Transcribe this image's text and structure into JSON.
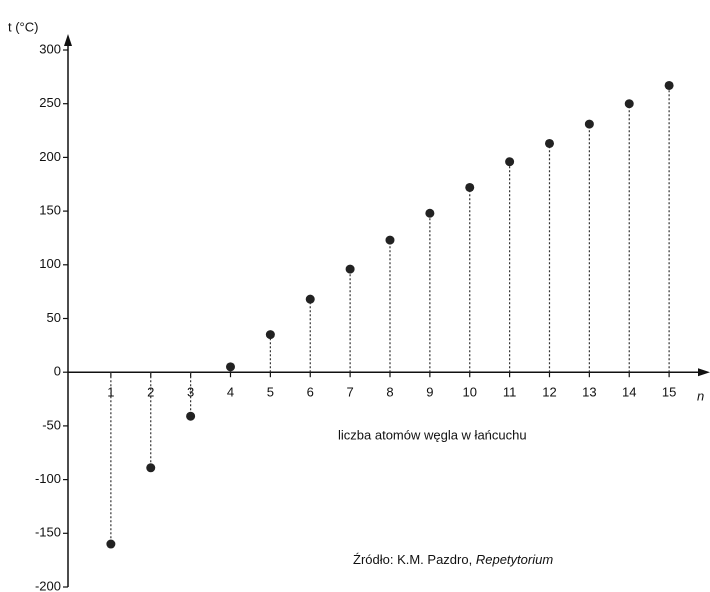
{
  "chart_data": {
    "type": "stem",
    "y_label": "t (°C)",
    "x_label": "n",
    "x_title": "liczba atomów węgla w łańcuchu",
    "source": "Źródło: K.M. Pazdro,",
    "source_title": "Repetytorium",
    "x": [
      1,
      2,
      3,
      4,
      5,
      6,
      7,
      8,
      9,
      10,
      11,
      12,
      13,
      14,
      15
    ],
    "values": [
      -160,
      -89,
      -41,
      5,
      35,
      68,
      96,
      123,
      148,
      172,
      196,
      213,
      231,
      250,
      267
    ],
    "color": "#222222",
    "xlim": [
      0,
      15.9
    ],
    "xticks": [
      1,
      2,
      3,
      4,
      5,
      6,
      7,
      8,
      9,
      10,
      11,
      12,
      13,
      14,
      15
    ],
    "ylim": [
      -200,
      300
    ],
    "yticks": [
      -200,
      -150,
      -100,
      -50,
      0,
      50,
      100,
      150,
      200,
      250,
      300
    ]
  }
}
